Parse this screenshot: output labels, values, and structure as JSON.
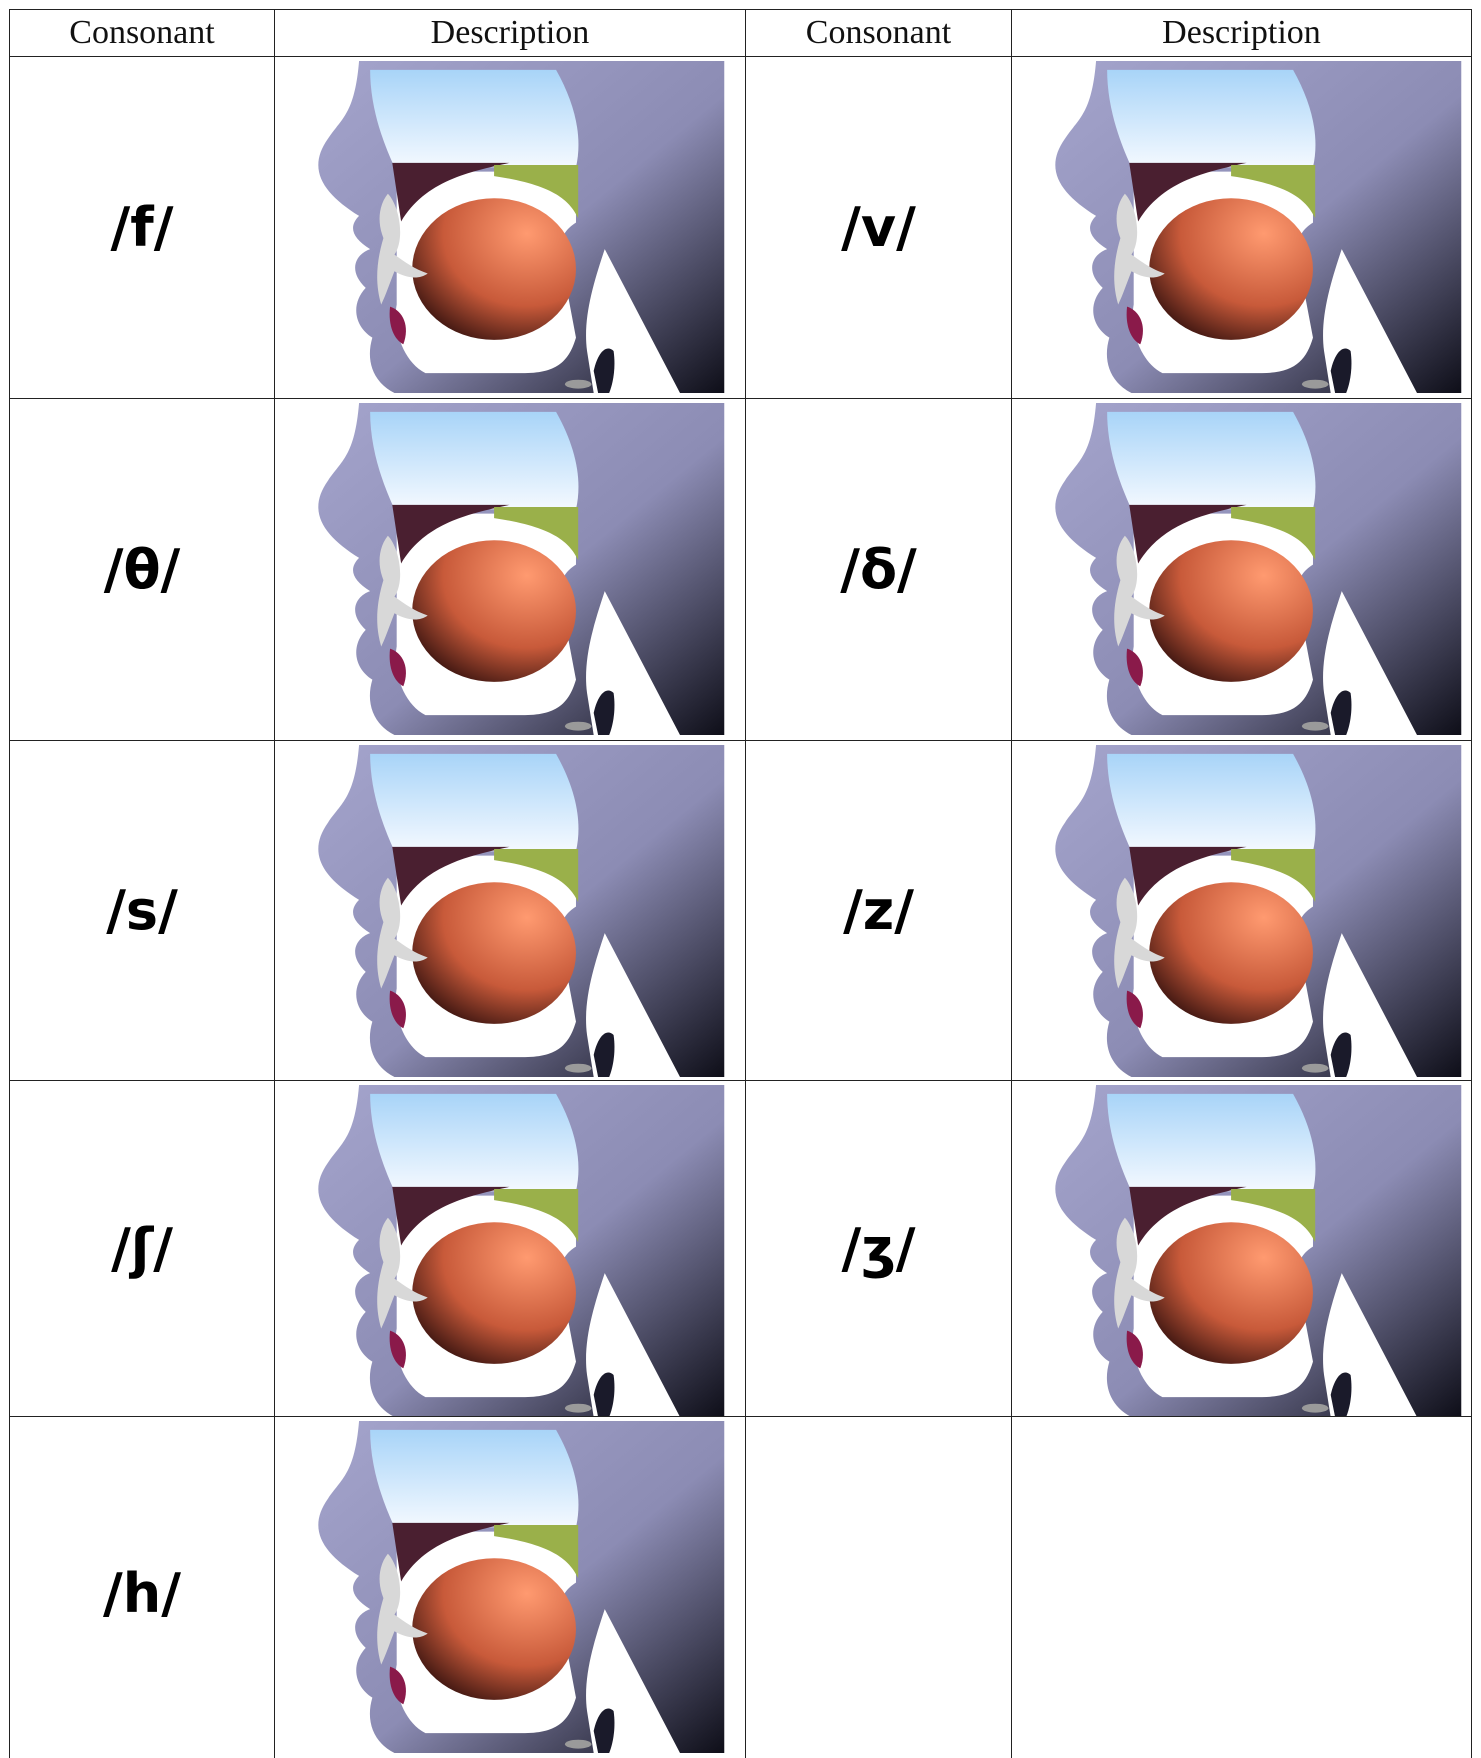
{
  "table": {
    "header": [
      "Consonant",
      "Description",
      "Consonant",
      "Description"
    ],
    "rows": [
      [
        "/f/",
        "/v/"
      ],
      [
        "/θ/",
        "/δ/"
      ],
      [
        "/s/",
        "/z/"
      ],
      [
        "/ʃ/",
        "/ʒ/"
      ],
      [
        "/h/"
      ]
    ]
  }
}
